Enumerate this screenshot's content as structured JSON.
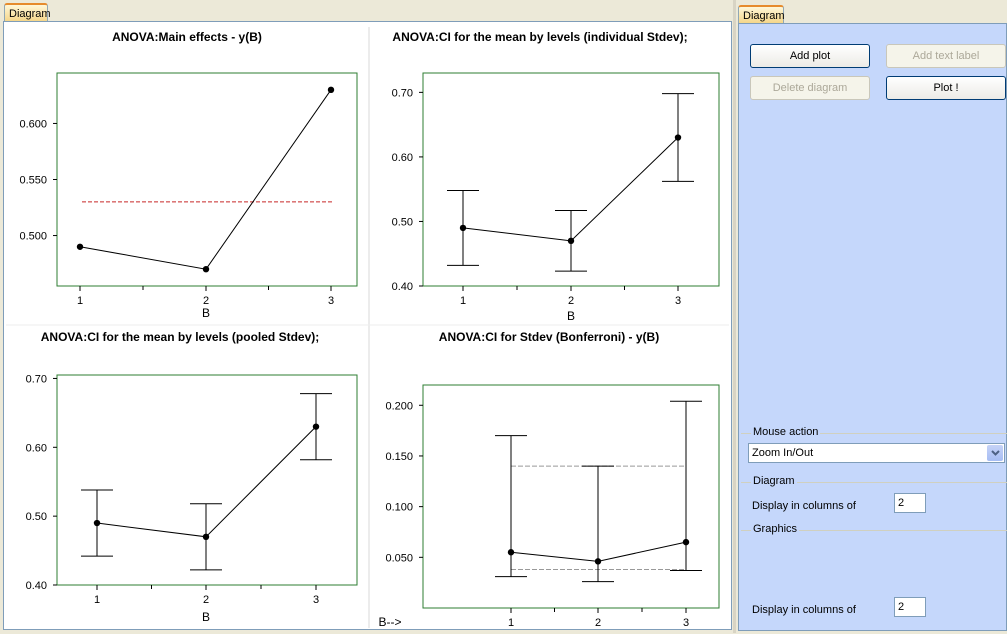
{
  "left_tab": {
    "label": "Diagram"
  },
  "right_tab": {
    "label": "Diagram"
  },
  "toolbar": {
    "add_plot": "Add plot",
    "add_text_label": "Add text label",
    "delete_diagram": "Delete diagram",
    "plot": "Plot !"
  },
  "mouse_action": {
    "label": "Mouse action",
    "value": "Zoom In/Out"
  },
  "diagram_group": {
    "label": "Diagram",
    "columns_label": "Display in columns of",
    "columns_value": "2"
  },
  "graphics_group": {
    "label": "Graphics",
    "columns_label": "Display in columns of",
    "columns_value": "2"
  },
  "chart_data": [
    {
      "type": "line",
      "title": "ANOVA:Main effects - y(B)",
      "xlabel": "B",
      "categories": [
        "1",
        "2",
        "3"
      ],
      "values": [
        0.49,
        0.47,
        0.63
      ],
      "reference_line": 0.53,
      "yticks": [
        "0.500",
        "0.550",
        "0.600"
      ],
      "ylim": [
        0.455,
        0.645
      ]
    },
    {
      "type": "line",
      "title": "ANOVA:CI for the mean by levels (individual Stdev);",
      "xlabel": "B",
      "categories": [
        "1",
        "2",
        "3"
      ],
      "values": [
        0.49,
        0.47,
        0.63
      ],
      "lower": [
        0.432,
        0.423,
        0.562
      ],
      "upper": [
        0.548,
        0.517,
        0.698
      ],
      "yticks": [
        "0.40",
        "0.50",
        "0.60",
        "0.70"
      ],
      "ylim": [
        0.4,
        0.73
      ]
    },
    {
      "type": "line",
      "title": "ANOVA:CI for the mean by levels (pooled Stdev);",
      "xlabel": "B",
      "categories": [
        "1",
        "2",
        "3"
      ],
      "values": [
        0.49,
        0.47,
        0.63
      ],
      "lower": [
        0.442,
        0.422,
        0.582
      ],
      "upper": [
        0.538,
        0.518,
        0.678
      ],
      "yticks": [
        "0.40",
        "0.50",
        "0.60",
        "0.70"
      ],
      "ylim": [
        0.4,
        0.705
      ]
    },
    {
      "type": "line",
      "title": "ANOVA:CI for Stdev (Bonferroni) - y(B)",
      "xlabel": "B-->",
      "categories": [
        "1",
        "2",
        "3"
      ],
      "values": [
        0.055,
        0.046,
        0.065
      ],
      "lower": [
        0.031,
        0.026,
        0.037
      ],
      "upper": [
        0.17,
        0.14,
        0.204
      ],
      "pooled_lower": 0.038,
      "pooled_upper": 0.14,
      "yticks": [
        "0.050",
        "0.100",
        "0.150",
        "0.200"
      ],
      "ylim": [
        0.0,
        0.22
      ]
    }
  ]
}
